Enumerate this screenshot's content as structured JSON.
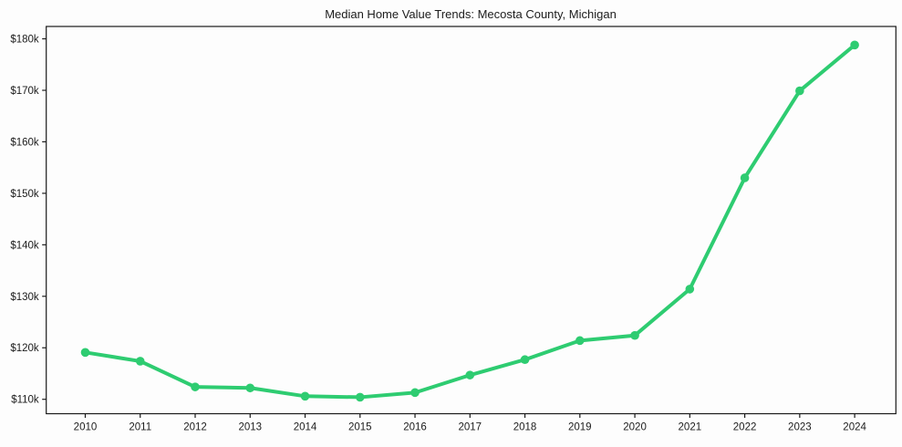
{
  "chart_data": {
    "type": "line",
    "title": "Median Home Value Trends: Mecosta County, Michigan",
    "xlabel": "",
    "ylabel": "",
    "years": [
      2010,
      2011,
      2012,
      2013,
      2014,
      2015,
      2016,
      2017,
      2018,
      2019,
      2020,
      2021,
      2022,
      2023,
      2024
    ],
    "values_usd": [
      119100,
      117400,
      112400,
      112200,
      110600,
      110400,
      111300,
      114700,
      117700,
      121400,
      122400,
      131400,
      153000,
      169900,
      178800
    ],
    "x_tick_labels": [
      "2010",
      "2011",
      "2012",
      "2013",
      "2014",
      "2015",
      "2016",
      "2017",
      "2018",
      "2019",
      "2020",
      "2021",
      "2022",
      "2023",
      "2024"
    ],
    "y_tick_values": [
      110000,
      120000,
      130000,
      140000,
      150000,
      160000,
      170000,
      180000
    ],
    "y_tick_labels": [
      "$110k",
      "$120k",
      "$130k",
      "$140k",
      "$150k",
      "$160k",
      "$170k",
      "$180k"
    ],
    "xlim": [
      2009.29,
      2024.75
    ],
    "ylim": [
      107200,
      182400
    ],
    "grid": false,
    "legend": false,
    "line_color": "#2ecc71",
    "marker": "circle",
    "spine_color": "#1a1a1a",
    "text_color": "#1c1c1c",
    "background_color": "#ffffff"
  }
}
